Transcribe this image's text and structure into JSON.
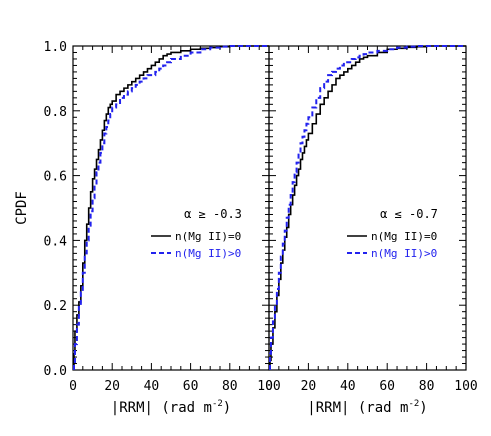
{
  "chart_data": {
    "type": "line",
    "shared": {
      "ylabel": "CPDF",
      "xlabel": "|RRM| (rad m",
      "xlabel_sup": "-2",
      "xlabel_close": ")",
      "xlim": [
        0,
        100
      ],
      "ylim": [
        0,
        1
      ],
      "xticks": [
        0,
        20,
        40,
        60,
        80,
        100
      ],
      "yticks": [
        0.0,
        0.2,
        0.4,
        0.6,
        0.8,
        1.0
      ],
      "ytick_labels": [
        "0.0",
        "0.2",
        "0.4",
        "0.6",
        "0.8",
        "1.0"
      ],
      "colors": {
        "axis": "#000000",
        "nMgII_0": "#000000",
        "nMgII_gt0": "#2222ee"
      }
    },
    "panels": [
      {
        "annotation": "α ≥ -0.3",
        "legend_position": "center-right",
        "series": [
          {
            "name": "n(Mg II)=0",
            "style": "solid",
            "x": [
              0.5,
              1,
              2,
              3,
              4,
              5,
              6,
              7,
              8,
              9,
              10,
              11,
              12,
              13,
              14,
              15,
              16,
              17,
              18,
              19,
              20,
              22,
              24,
              26,
              28,
              30,
              32,
              34,
              36,
              38,
              40,
              42,
              44,
              46,
              48,
              50,
              55,
              60,
              65,
              70,
              75,
              80,
              100
            ],
            "y": [
              0.05,
              0.12,
              0.17,
              0.21,
              0.26,
              0.33,
              0.4,
              0.45,
              0.5,
              0.55,
              0.59,
              0.62,
              0.65,
              0.68,
              0.71,
              0.74,
              0.77,
              0.79,
              0.81,
              0.82,
              0.83,
              0.85,
              0.86,
              0.87,
              0.88,
              0.89,
              0.9,
              0.91,
              0.92,
              0.93,
              0.94,
              0.95,
              0.96,
              0.97,
              0.975,
              0.98,
              0.985,
              0.99,
              0.993,
              0.995,
              0.998,
              1.0,
              1.0
            ]
          },
          {
            "name": "n(Mg II)>0",
            "style": "dashed",
            "x": [
              0.5,
              1,
              2,
              3,
              4,
              5,
              6,
              7,
              8,
              9,
              10,
              11,
              12,
              13,
              14,
              15,
              16,
              17,
              18,
              19,
              20,
              22,
              24,
              26,
              28,
              30,
              32,
              34,
              36,
              38,
              40,
              42,
              44,
              46,
              48,
              50,
              55,
              60,
              65,
              70,
              75,
              80,
              100
            ],
            "y": [
              0.02,
              0.08,
              0.14,
              0.2,
              0.24,
              0.3,
              0.36,
              0.4,
              0.44,
              0.49,
              0.53,
              0.57,
              0.61,
              0.64,
              0.67,
              0.7,
              0.73,
              0.75,
              0.77,
              0.79,
              0.81,
              0.82,
              0.84,
              0.85,
              0.86,
              0.87,
              0.88,
              0.89,
              0.9,
              0.91,
              0.91,
              0.92,
              0.93,
              0.94,
              0.95,
              0.96,
              0.97,
              0.98,
              0.99,
              0.995,
              0.998,
              1.0,
              1.0
            ]
          }
        ]
      },
      {
        "annotation": "α ≤ -0.7",
        "legend_position": "center-right",
        "series": [
          {
            "name": "n(Mg II)=0",
            "style": "solid",
            "x": [
              0.5,
              1,
              2,
              3,
              4,
              5,
              6,
              7,
              8,
              9,
              10,
              11,
              12,
              13,
              14,
              15,
              16,
              17,
              18,
              19,
              20,
              22,
              24,
              26,
              28,
              30,
              32,
              34,
              36,
              38,
              40,
              42,
              44,
              46,
              48,
              50,
              55,
              60,
              65,
              70,
              75,
              80,
              100
            ],
            "y": [
              0.03,
              0.08,
              0.13,
              0.18,
              0.23,
              0.28,
              0.33,
              0.37,
              0.41,
              0.44,
              0.48,
              0.51,
              0.54,
              0.57,
              0.6,
              0.62,
              0.65,
              0.67,
              0.69,
              0.71,
              0.73,
              0.76,
              0.79,
              0.82,
              0.84,
              0.86,
              0.88,
              0.9,
              0.91,
              0.92,
              0.93,
              0.94,
              0.95,
              0.96,
              0.965,
              0.97,
              0.98,
              0.99,
              0.993,
              0.996,
              0.998,
              1.0,
              1.0
            ]
          },
          {
            "name": "n(Mg II)>0",
            "style": "dashed",
            "x": [
              0.5,
              1,
              2,
              3,
              4,
              5,
              6,
              7,
              8,
              9,
              10,
              11,
              12,
              13,
              14,
              15,
              16,
              17,
              18,
              19,
              20,
              22,
              24,
              26,
              28,
              30,
              32,
              34,
              36,
              38,
              40,
              42,
              44,
              46,
              48,
              50,
              55,
              60,
              65,
              70,
              75,
              80,
              100
            ],
            "y": [
              0.05,
              0.1,
              0.15,
              0.2,
              0.25,
              0.3,
              0.35,
              0.39,
              0.43,
              0.47,
              0.51,
              0.54,
              0.58,
              0.61,
              0.64,
              0.67,
              0.7,
              0.72,
              0.74,
              0.76,
              0.78,
              0.81,
              0.84,
              0.87,
              0.89,
              0.91,
              0.92,
              0.93,
              0.94,
              0.95,
              0.95,
              0.96,
              0.965,
              0.97,
              0.975,
              0.98,
              0.985,
              0.99,
              0.995,
              0.998,
              1.0,
              1.0,
              1.0
            ]
          }
        ]
      }
    ]
  }
}
